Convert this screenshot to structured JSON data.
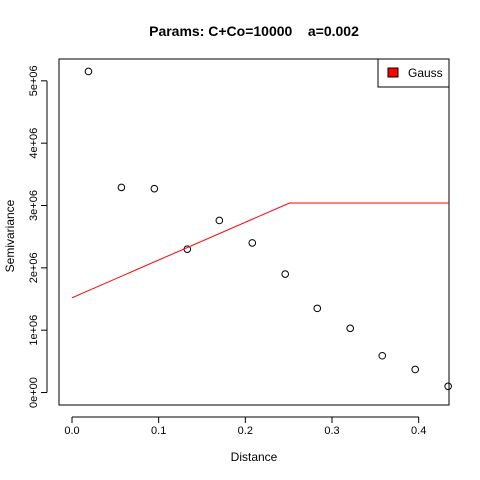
{
  "chart_data": {
    "type": "scatter",
    "title": "Params: C+Co=10000    a=0.002",
    "xlabel": "Distance",
    "ylabel": "Semivariance",
    "xlim": [
      -0.015,
      0.435
    ],
    "ylim": [
      -200000,
      5350000
    ],
    "x_ticks": [
      0.0,
      0.1,
      0.2,
      0.3,
      0.4
    ],
    "x_tick_labels": [
      "0.0",
      "0.1",
      "0.2",
      "0.3",
      "0.4"
    ],
    "y_ticks": [
      0,
      1000000,
      2000000,
      3000000,
      4000000,
      5000000
    ],
    "y_tick_labels": [
      "0e+00",
      "1e+06",
      "2e+06",
      "3e+06",
      "4e+06",
      "5e+06"
    ],
    "grid": false,
    "legend_position": "top-right",
    "series": [
      {
        "name": "",
        "kind": "points",
        "marker": "open-circle",
        "color": "#000000",
        "x": [
          0.019,
          0.057,
          0.095,
          0.133,
          0.17,
          0.208,
          0.246,
          0.283,
          0.321,
          0.358,
          0.396,
          0.434
        ],
        "y": [
          5150000,
          3290000,
          3270000,
          2300000,
          2760000,
          2400000,
          1900000,
          1350000,
          1030000,
          590000,
          370000,
          100000
        ]
      },
      {
        "name": "Gauss",
        "kind": "line",
        "color": "#ff0000",
        "x": [
          0.0,
          0.251,
          0.435
        ],
        "y": [
          1520000,
          3040000,
          3040000
        ]
      }
    ],
    "legend": [
      {
        "label": "Gauss",
        "color": "#ff0000"
      }
    ]
  }
}
